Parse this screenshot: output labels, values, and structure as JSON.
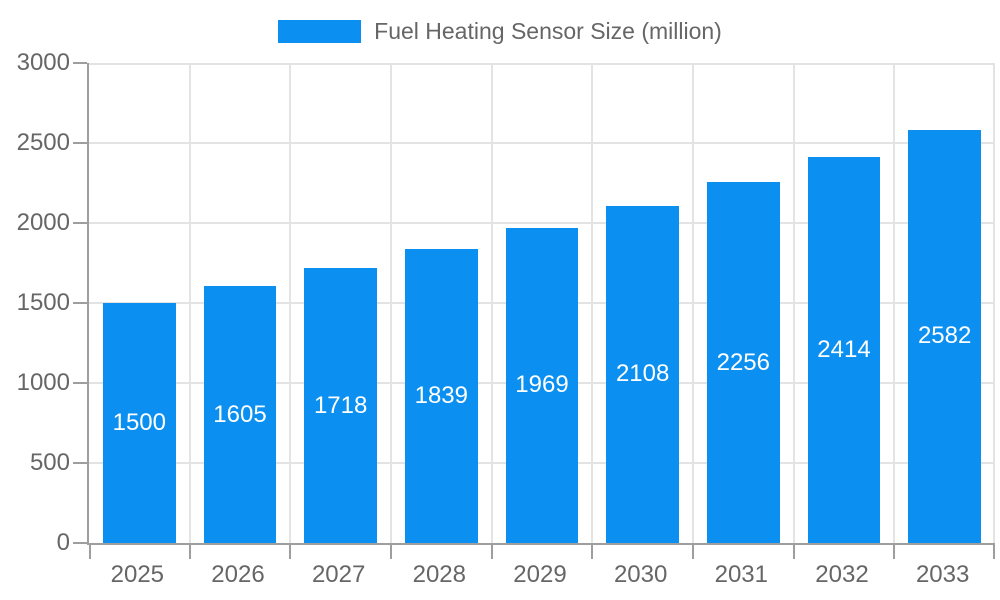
{
  "chart_data": {
    "type": "bar",
    "title": "",
    "legend": "Fuel Heating Sensor Size (million)",
    "legend_position": "top",
    "categories": [
      "2025",
      "2026",
      "2027",
      "2028",
      "2029",
      "2030",
      "2031",
      "2032",
      "2033"
    ],
    "values": [
      1500,
      1605,
      1718,
      1839,
      1969,
      2108,
      2256,
      2414,
      2582
    ],
    "xlabel": "",
    "ylabel": "",
    "ylim": [
      0,
      3000
    ],
    "yticks": [
      0,
      500,
      1000,
      1500,
      2000,
      2500,
      3000
    ],
    "grid": true,
    "bar_labels_shown": true,
    "colors": {
      "bar": "#0b90f2",
      "bar_label": "#ffffff",
      "axis_text": "#666666",
      "axis_line": "#9e9e9e",
      "grid_line": "#e3e3e3",
      "background": "#ffffff"
    }
  }
}
